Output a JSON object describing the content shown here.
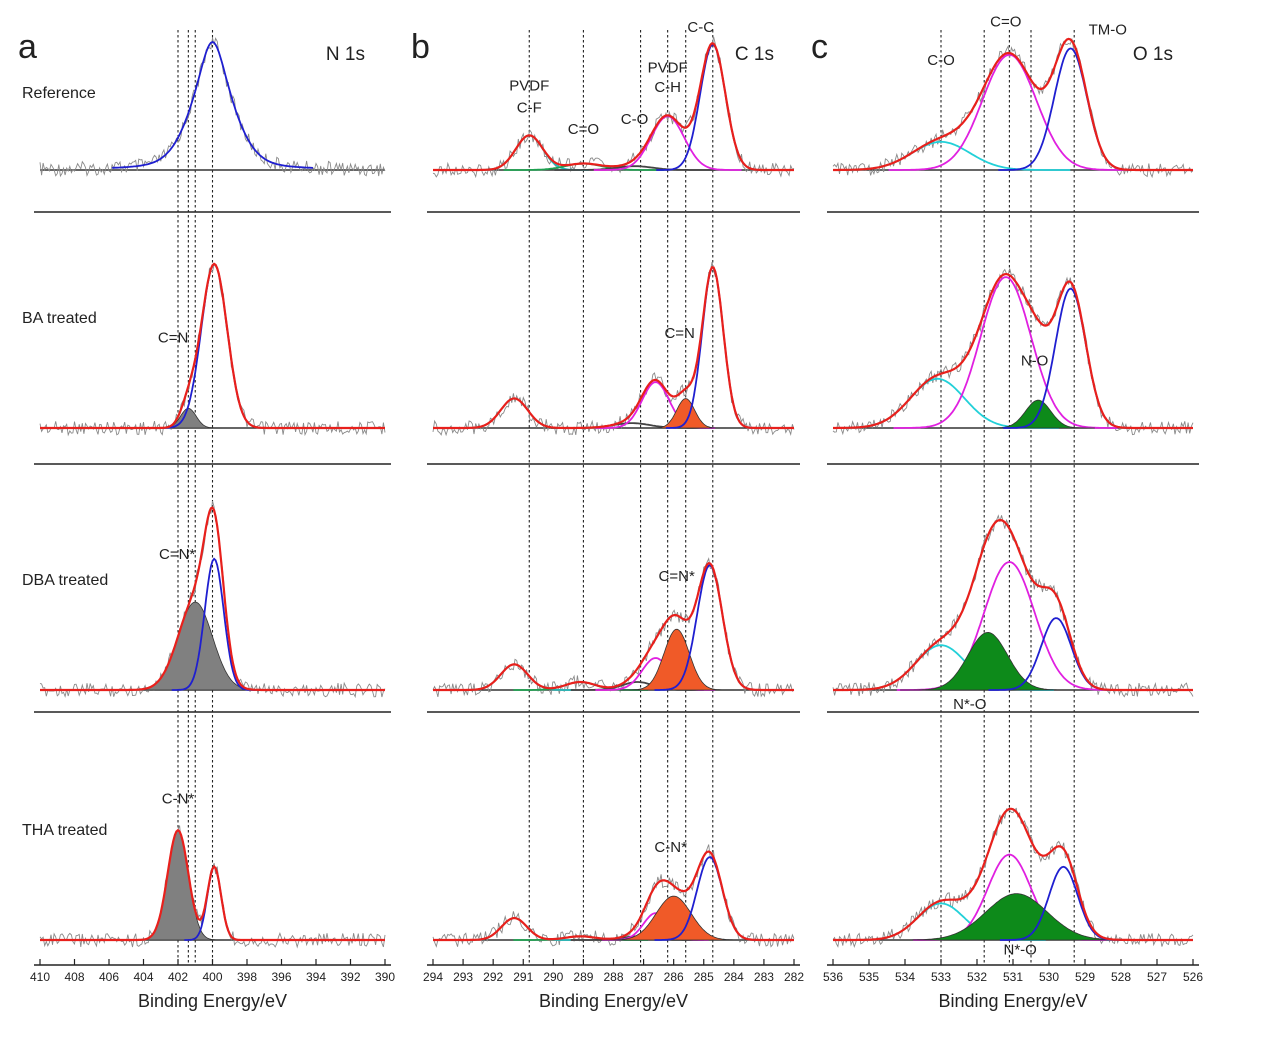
{
  "chart_data": [
    {
      "type": "line",
      "panel_letter": "a",
      "core_level": "N 1s",
      "xlabel": "Binding Energy/eV",
      "xlim": [
        410,
        390
      ],
      "x_ticks": [
        410,
        408,
        406,
        404,
        402,
        400,
        398,
        396,
        394,
        392,
        390
      ],
      "reference_lines": [
        400.0,
        401.4,
        401.0,
        402.0
      ],
      "rows": [
        {
          "label": "Reference",
          "annotations": [],
          "peaks": [
            {
              "center": 400.0,
              "height": 1.0,
              "width": 1.3,
              "color": "#1f1fd0",
              "lorentz": true
            }
          ]
        },
        {
          "label": "BA treated",
          "annotations": [
            {
              "text": "C=N",
              "x": 401.4,
              "y": 0.52,
              "anchor": "end"
            }
          ],
          "peaks": [
            {
              "center": 401.4,
              "height": 0.12,
              "width": 0.45,
              "color": "#808080",
              "fill": true
            },
            {
              "center": 399.9,
              "height": 1.0,
              "width": 0.75,
              "color": "#1f1fd0"
            }
          ]
        },
        {
          "label": "DBA treated",
          "annotations": [
            {
              "text": "C=N*",
              "x": 401.0,
              "y": 0.82,
              "anchor": "end"
            }
          ],
          "peaks": [
            {
              "center": 401.0,
              "height": 0.55,
              "width": 1.0,
              "color": "#808080",
              "fill": true
            },
            {
              "center": 399.9,
              "height": 0.82,
              "width": 0.55,
              "color": "#1f1fd0"
            }
          ]
        },
        {
          "label": "THA treated",
          "annotations": [
            {
              "text": "C-N*",
              "x": 402.0,
              "y": 1.12,
              "anchor": "middle"
            }
          ],
          "peaks": [
            {
              "center": 402.0,
              "height": 0.9,
              "width": 0.6,
              "color": "#808080",
              "fill": true
            },
            {
              "center": 399.9,
              "height": 0.6,
              "width": 0.4,
              "color": "#1f1fd0"
            }
          ]
        }
      ]
    },
    {
      "type": "line",
      "panel_letter": "b",
      "core_level": "C 1s",
      "xlabel": "Binding Energy/eV",
      "xlim": [
        294,
        282
      ],
      "x_ticks": [
        294,
        293,
        292,
        291,
        290,
        289,
        288,
        287,
        286,
        285,
        284,
        283,
        282
      ],
      "reference_lines": [
        290.8,
        289.0,
        287.1,
        286.2,
        285.6,
        284.7
      ],
      "rows": [
        {
          "label": "",
          "annotations": [
            {
              "text": "PVDF",
              "x": 290.8,
              "y": 0.62,
              "anchor": "middle"
            },
            {
              "text": "C-F",
              "x": 290.8,
              "y": 0.45,
              "anchor": "middle"
            },
            {
              "text": "C=O",
              "x": 289.0,
              "y": 0.28,
              "anchor": "middle"
            },
            {
              "text": "C-O",
              "x": 287.3,
              "y": 0.36,
              "anchor": "middle"
            },
            {
              "text": "PVDF",
              "x": 286.2,
              "y": 0.76,
              "anchor": "middle"
            },
            {
              "text": "C-H",
              "x": 286.2,
              "y": 0.61,
              "anchor": "middle"
            },
            {
              "text": "C-C",
              "x": 285.1,
              "y": 1.08,
              "anchor": "middle"
            }
          ],
          "peaks": [
            {
              "center": 290.8,
              "height": 0.27,
              "width": 0.45,
              "color": "#22b8b8"
            },
            {
              "center": 289.0,
              "height": 0.05,
              "width": 0.6,
              "color": "#1fa050"
            },
            {
              "center": 287.3,
              "height": 0.03,
              "width": 0.6,
              "color": "#444444"
            },
            {
              "center": 286.2,
              "height": 0.42,
              "width": 0.55,
              "color": "#e020e0"
            },
            {
              "center": 284.7,
              "height": 0.98,
              "width": 0.42,
              "color": "#1f1fd0"
            }
          ]
        },
        {
          "label": "",
          "annotations": [
            {
              "text": "C=N",
              "x": 285.8,
              "y": 0.55,
              "anchor": "middle"
            }
          ],
          "peaks": [
            {
              "center": 291.3,
              "height": 0.18,
              "width": 0.45,
              "color": "#22b8b8"
            },
            {
              "center": 287.4,
              "height": 0.03,
              "width": 0.6,
              "color": "#444444"
            },
            {
              "center": 286.6,
              "height": 0.28,
              "width": 0.45,
              "color": "#e020e0"
            },
            {
              "center": 285.6,
              "height": 0.18,
              "width": 0.3,
              "color": "#f05a28",
              "fill": true
            },
            {
              "center": 284.7,
              "height": 0.98,
              "width": 0.35,
              "color": "#1f1fd0"
            }
          ]
        },
        {
          "label": "",
          "annotations": [
            {
              "text": "C=N*",
              "x": 285.9,
              "y": 0.68,
              "anchor": "middle"
            }
          ],
          "peaks": [
            {
              "center": 291.3,
              "height": 0.16,
              "width": 0.45,
              "color": "#22b8b8"
            },
            {
              "center": 289.1,
              "height": 0.05,
              "width": 0.5,
              "color": "#1fa050"
            },
            {
              "center": 287.2,
              "height": 0.05,
              "width": 0.5,
              "color": "#444444"
            },
            {
              "center": 286.6,
              "height": 0.2,
              "width": 0.45,
              "color": "#e020e0"
            },
            {
              "center": 285.9,
              "height": 0.38,
              "width": 0.42,
              "color": "#f05a28",
              "fill": true
            },
            {
              "center": 284.8,
              "height": 0.78,
              "width": 0.42,
              "color": "#1f1fd0"
            }
          ]
        },
        {
          "label": "",
          "annotations": [
            {
              "text": "C-N*",
              "x": 286.1,
              "y": 0.72,
              "anchor": "middle"
            }
          ],
          "peaks": [
            {
              "center": 291.3,
              "height": 0.18,
              "width": 0.42,
              "color": "#22b8b8"
            },
            {
              "center": 289.1,
              "height": 0.03,
              "width": 0.5,
              "color": "#1fa050"
            },
            {
              "center": 287.2,
              "height": 0.03,
              "width": 0.5,
              "color": "#444444"
            },
            {
              "center": 286.6,
              "height": 0.22,
              "width": 0.4,
              "color": "#e020e0"
            },
            {
              "center": 286.0,
              "height": 0.36,
              "width": 0.58,
              "color": "#f05a28",
              "fill": true
            },
            {
              "center": 284.8,
              "height": 0.68,
              "width": 0.42,
              "color": "#1f1fd0"
            }
          ]
        }
      ]
    },
    {
      "type": "line",
      "panel_letter": "c",
      "core_level": "O 1s",
      "xlabel": "Binding Energy/eV",
      "xlim": [
        536,
        526
      ],
      "x_ticks": [
        536,
        535,
        534,
        533,
        532,
        531,
        530,
        529,
        528,
        527,
        526
      ],
      "reference_lines": [
        533.0,
        531.1,
        529.3,
        531.8,
        530.5
      ],
      "rows": [
        {
          "label": "",
          "annotations": [
            {
              "text": "C-O",
              "x": 533.0,
              "y": 0.82,
              "anchor": "middle"
            },
            {
              "text": "C=O",
              "x": 531.2,
              "y": 1.12,
              "anchor": "middle"
            },
            {
              "text": "TM-O",
              "x": 528.9,
              "y": 1.06,
              "anchor": "start"
            }
          ],
          "peaks": [
            {
              "center": 533.0,
              "height": 0.22,
              "width": 0.8,
              "color": "#22d0d8"
            },
            {
              "center": 531.1,
              "height": 0.9,
              "width": 0.75,
              "color": "#e020e0"
            },
            {
              "center": 529.4,
              "height": 0.95,
              "width": 0.45,
              "color": "#1f1fd0"
            }
          ]
        },
        {
          "label": "",
          "annotations": [
            {
              "text": "N-O",
              "x": 530.4,
              "y": 0.38,
              "anchor": "middle"
            }
          ],
          "peaks": [
            {
              "center": 533.1,
              "height": 0.3,
              "width": 0.75,
              "color": "#22d0d8"
            },
            {
              "center": 531.2,
              "height": 0.92,
              "width": 0.7,
              "color": "#e020e0"
            },
            {
              "center": 530.3,
              "height": 0.17,
              "width": 0.35,
              "color": "#0d8a1a",
              "fill": true
            },
            {
              "center": 529.4,
              "height": 0.85,
              "width": 0.42,
              "color": "#1f1fd0"
            }
          ]
        },
        {
          "label": "",
          "annotations": [
            {
              "text": "N*-O",
              "x": 532.2,
              "y": -0.12,
              "anchor": "middle"
            }
          ],
          "peaks": [
            {
              "center": 533.0,
              "height": 0.28,
              "width": 0.7,
              "color": "#22d0d8"
            },
            {
              "center": 531.1,
              "height": 0.8,
              "width": 0.7,
              "color": "#e020e0"
            },
            {
              "center": 531.7,
              "height": 0.36,
              "width": 0.55,
              "color": "#0d8a1a",
              "fill": true
            },
            {
              "center": 529.8,
              "height": 0.45,
              "width": 0.42,
              "color": "#1f1fd0"
            }
          ]
        },
        {
          "label": "",
          "annotations": [
            {
              "text": "N*-O",
              "x": 530.8,
              "y": -0.12,
              "anchor": "middle"
            }
          ],
          "peaks": [
            {
              "center": 533.0,
              "height": 0.3,
              "width": 0.65,
              "color": "#22d0d8"
            },
            {
              "center": 531.1,
              "height": 0.7,
              "width": 0.6,
              "color": "#e020e0"
            },
            {
              "center": 530.9,
              "height": 0.38,
              "width": 0.85,
              "color": "#0d8a1a",
              "fill": true
            },
            {
              "center": 529.6,
              "height": 0.6,
              "width": 0.4,
              "color": "#1f1fd0"
            }
          ]
        }
      ]
    }
  ]
}
